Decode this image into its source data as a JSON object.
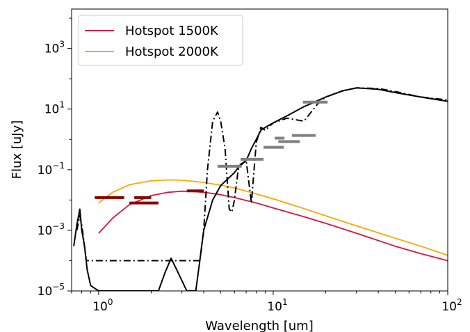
{
  "chart_data": {
    "type": "line",
    "xlabel": "Wavelength [um]",
    "ylabel": "Flux [uJy]",
    "xscale": "log",
    "yscale": "log",
    "xlim": [
      0.7,
      100
    ],
    "ylim": [
      1e-05,
      20000
    ],
    "grid": false,
    "legend_position": "top-left",
    "x_ticks": [
      {
        "value": 1,
        "base": "10",
        "exp": "0"
      },
      {
        "value": 10,
        "base": "10",
        "exp": "1"
      },
      {
        "value": 100,
        "base": "10",
        "exp": "2"
      }
    ],
    "y_ticks": [
      {
        "value": 1e-05,
        "base": "10",
        "exp": "−5"
      },
      {
        "value": 0.001,
        "base": "10",
        "exp": "−3"
      },
      {
        "value": 0.1,
        "base": "10",
        "exp": "−1"
      },
      {
        "value": 10,
        "base": "10",
        "exp": "1"
      },
      {
        "value": 1000,
        "base": "10",
        "exp": "3"
      }
    ],
    "series": [
      {
        "name": "Hotspot 1500K",
        "color": "#dc143c",
        "style": "solid",
        "x": [
          1.0,
          1.2,
          1.5,
          2.0,
          2.5,
          3.0,
          3.5,
          4.0,
          5.0,
          6.0,
          8.0,
          10,
          15,
          20,
          30,
          50,
          70,
          100
        ],
        "y": [
          0.0008,
          0.0025,
          0.007,
          0.014,
          0.018,
          0.0195,
          0.019,
          0.018,
          0.015,
          0.012,
          0.008,
          0.0055,
          0.0028,
          0.0017,
          0.0008,
          0.0003,
          0.00017,
          0.0001
        ]
      },
      {
        "name": "Hotspot 2000K",
        "color": "#ffa500",
        "style": "solid",
        "x": [
          1.0,
          1.2,
          1.5,
          2.0,
          2.5,
          3.0,
          4.0,
          5.0,
          6.0,
          8.0,
          10,
          15,
          20,
          30,
          50,
          70,
          100
        ],
        "y": [
          0.008,
          0.018,
          0.032,
          0.043,
          0.046,
          0.045,
          0.038,
          0.031,
          0.025,
          0.016,
          0.011,
          0.0052,
          0.003,
          0.0014,
          0.00055,
          0.0003,
          0.00015
        ]
      },
      {
        "color": "#000000",
        "style": "solid",
        "x": [
          0.72,
          0.75,
          0.78,
          0.8,
          0.83,
          0.86,
          0.9,
          1.0,
          1.5,
          2.2,
          2.4,
          2.6,
          2.8,
          3.2,
          3.6,
          3.8,
          4.0,
          4.5,
          5.0,
          5.5,
          6.0,
          6.5,
          7.0,
          7.5,
          8.0,
          8.5,
          9.0,
          10,
          12,
          15,
          20,
          25,
          30,
          40,
          50,
          70,
          100
        ],
        "y": [
          0.0003,
          0.0015,
          0.005,
          0.001,
          0.0003,
          5e-05,
          1.5e-05,
          1e-05,
          1e-05,
          1e-05,
          4e-05,
          0.00012,
          5e-05,
          1e-05,
          1e-05,
          0.0001,
          0.001,
          0.01,
          0.03,
          0.05,
          0.08,
          0.15,
          0.2,
          0.5,
          1.0,
          2.0,
          2.5,
          3.5,
          6,
          12,
          25,
          40,
          50,
          45,
          35,
          25,
          18
        ]
      },
      {
        "color": "#000000",
        "style": "dashdot",
        "x": [
          0.75,
          0.78,
          0.8,
          0.82,
          0.85,
          3.8,
          4.0,
          4.2,
          4.5,
          4.8,
          5.0,
          5.3,
          5.6,
          5.8,
          6.0,
          6.3,
          6.6,
          7.0,
          7.5,
          8.0,
          8.5,
          9.0,
          10,
          12,
          15,
          18,
          20,
          25,
          30,
          40,
          50,
          70,
          100
        ],
        "y": [
          0.001,
          0.003,
          0.0015,
          0.0005,
          0.0001,
          0.0001,
          0.001,
          0.1,
          4,
          8,
          4,
          0.5,
          0.005,
          0.004,
          0.01,
          0.1,
          0.15,
          0.2,
          0.008,
          0.8,
          2.5,
          2.0,
          3.5,
          5,
          4,
          15,
          25,
          40,
          50,
          48,
          38,
          25,
          20
        ]
      }
    ],
    "photometry": [
      {
        "color": "#8b0000",
        "x0": 0.95,
        "x1": 1.4,
        "y": 0.012
      },
      {
        "color": "#8b0000",
        "x0": 1.5,
        "x1": 2.2,
        "y": 0.008
      },
      {
        "color": "#8b0000",
        "x0": 1.6,
        "x1": 2.0,
        "y": 0.012
      },
      {
        "color": "#8b0000",
        "x0": 3.2,
        "x1": 4.0,
        "y": 0.02
      },
      {
        "color": "#808080",
        "x0": 4.8,
        "x1": 6.6,
        "y": 0.13
      },
      {
        "color": "#808080",
        "x0": 6.5,
        "x1": 8.8,
        "y": 0.22
      },
      {
        "color": "#808080",
        "x0": 8.8,
        "x1": 11.5,
        "y": 0.55
      },
      {
        "color": "#808080",
        "x0": 10.2,
        "x1": 11.6,
        "y": 1.1
      },
      {
        "color": "#808080",
        "x0": 10.7,
        "x1": 14.2,
        "y": 0.85
      },
      {
        "color": "#808080",
        "x0": 12.8,
        "x1": 17.5,
        "y": 1.35
      },
      {
        "color": "#808080",
        "x0": 14.8,
        "x1": 20.5,
        "y": 17
      }
    ]
  }
}
